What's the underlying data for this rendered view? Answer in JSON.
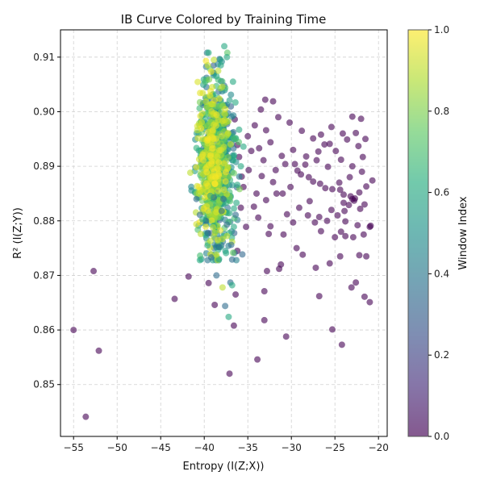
{
  "chart_data": {
    "type": "scatter",
    "title": "IB Curve Colored by Training Time",
    "xlabel": "Entropy (I(Z;X))",
    "ylabel": "R² (I(Z;Y))",
    "xlim": [
      -56.5,
      -19.0
    ],
    "ylim": [
      0.8405,
      0.915
    ],
    "x_ticks": [
      -55,
      -50,
      -45,
      -40,
      -35,
      -30,
      -25,
      -20
    ],
    "y_ticks": [
      0.85,
      0.86,
      0.87,
      0.88,
      0.89,
      0.9,
      0.91
    ],
    "grid": true,
    "colormap": "viridis",
    "colorbar": {
      "label": "Window Index",
      "range": [
        0.0,
        1.0
      ],
      "ticks": [
        0.0,
        0.2,
        0.4,
        0.6,
        0.8,
        1.0
      ]
    },
    "series": [
      {
        "color_value": 0.0,
        "points": [
          [
            -55.0,
            0.86
          ],
          [
            -53.6,
            0.8441
          ],
          [
            -52.7,
            0.8708
          ],
          [
            -52.1,
            0.8562
          ],
          [
            -43.4,
            0.8657
          ],
          [
            -41.8,
            0.8698
          ],
          [
            -39.5,
            0.8686
          ],
          [
            -38.8,
            0.8646
          ],
          [
            -37.1,
            0.852
          ],
          [
            -36.6,
            0.8608
          ],
          [
            -36.4,
            0.8665
          ],
          [
            -33.9,
            0.8546
          ],
          [
            -33.1,
            0.8618
          ],
          [
            -33.1,
            0.8671
          ],
          [
            -30.6,
            0.8588
          ],
          [
            -26.8,
            0.8662
          ],
          [
            -25.3,
            0.8601
          ],
          [
            -24.2,
            0.8573
          ],
          [
            -21.6,
            0.8661
          ],
          [
            -21.0,
            0.8651
          ],
          [
            -22.6,
            0.8687
          ],
          [
            -23.1,
            0.8678
          ],
          [
            -22.2,
            0.8737
          ],
          [
            -21.4,
            0.8735
          ],
          [
            -24.4,
            0.8735
          ],
          [
            -25.6,
            0.8722
          ],
          [
            -27.2,
            0.8714
          ],
          [
            -28.7,
            0.8738
          ],
          [
            -31.4,
            0.8712
          ],
          [
            -32.8,
            0.8708
          ],
          [
            -31.2,
            0.872
          ],
          [
            -29.4,
            0.875
          ],
          [
            -36.2,
            0.8745
          ],
          [
            -35.2,
            0.8789
          ],
          [
            -33.8,
            0.8806
          ],
          [
            -32.4,
            0.879
          ],
          [
            -30.9,
            0.8775
          ],
          [
            -29.8,
            0.8797
          ],
          [
            -28.1,
            0.881
          ],
          [
            -26.6,
            0.8781
          ],
          [
            -25.0,
            0.877
          ],
          [
            -23.8,
            0.8772
          ],
          [
            -22.4,
            0.8792
          ],
          [
            -21.0,
            0.8789
          ],
          [
            -21.4,
            0.8863
          ],
          [
            -22.2,
            0.8852
          ],
          [
            -23.0,
            0.884
          ],
          [
            -24.0,
            0.8833
          ],
          [
            -25.4,
            0.882
          ],
          [
            -26.8,
            0.8807
          ],
          [
            -27.9,
            0.8836
          ],
          [
            -29.1,
            0.8824
          ],
          [
            -30.5,
            0.8812
          ],
          [
            -31.7,
            0.885
          ],
          [
            -32.9,
            0.8838
          ],
          [
            -34.3,
            0.8826
          ],
          [
            -35.5,
            0.8862
          ],
          [
            -34.9,
            0.8893
          ],
          [
            -33.4,
            0.8882
          ],
          [
            -32.1,
            0.8871
          ],
          [
            -30.7,
            0.8904
          ],
          [
            -29.3,
            0.8892
          ],
          [
            -28.0,
            0.888
          ],
          [
            -26.7,
            0.8868
          ],
          [
            -25.3,
            0.8858
          ],
          [
            -24.0,
            0.8848
          ],
          [
            -22.8,
            0.8837
          ],
          [
            -21.6,
            0.883
          ],
          [
            -20.7,
            0.8874
          ],
          [
            -21.9,
            0.889
          ],
          [
            -23.3,
            0.888
          ],
          [
            -24.5,
            0.887
          ],
          [
            -25.8,
            0.8899
          ],
          [
            -27.1,
            0.8911
          ],
          [
            -28.4,
            0.8903
          ],
          [
            -29.8,
            0.893
          ],
          [
            -31.1,
            0.8919
          ],
          [
            -32.4,
            0.8944
          ],
          [
            -33.7,
            0.8933
          ],
          [
            -35.0,
            0.8955
          ],
          [
            -34.2,
            0.8975
          ],
          [
            -32.9,
            0.8966
          ],
          [
            -31.5,
            0.899
          ],
          [
            -30.2,
            0.898
          ],
          [
            -28.8,
            0.8965
          ],
          [
            -27.5,
            0.8951
          ],
          [
            -26.2,
            0.894
          ],
          [
            -24.9,
            0.8928
          ],
          [
            -23.6,
            0.8949
          ],
          [
            -22.3,
            0.8937
          ],
          [
            -24.1,
            0.896
          ],
          [
            -25.4,
            0.8972
          ],
          [
            -26.6,
            0.8958
          ],
          [
            -33.5,
            0.9004
          ],
          [
            -32.1,
            0.9019
          ],
          [
            -33.0,
            0.9022
          ],
          [
            -36.0,
            0.8917
          ],
          [
            -35.7,
            0.8881
          ],
          [
            -22.0,
            0.8987
          ],
          [
            -23.0,
            0.8991
          ],
          [
            -22.7,
            0.8841
          ],
          [
            -23.4,
            0.8829
          ],
          [
            -23.9,
            0.8818
          ],
          [
            -24.7,
            0.881
          ],
          [
            -25.9,
            0.88
          ],
          [
            -27.3,
            0.8797
          ],
          [
            -24.3,
            0.878
          ],
          [
            -22.9,
            0.877
          ],
          [
            -21.7,
            0.8775
          ],
          [
            -20.9,
            0.8791
          ],
          [
            -23.2,
            0.8845
          ],
          [
            -24.4,
            0.8857
          ],
          [
            -22.1,
            0.8822
          ],
          [
            -23.8,
            0.8799
          ],
          [
            -26.1,
            0.886
          ],
          [
            -27.5,
            0.8872
          ],
          [
            -28.9,
            0.8885
          ],
          [
            -30.1,
            0.8862
          ],
          [
            -31.8,
            0.8893
          ],
          [
            -33.2,
            0.8911
          ],
          [
            -34.6,
            0.8928
          ],
          [
            -36.2,
            0.8939
          ],
          [
            -36.5,
            0.8986
          ],
          [
            -35.8,
            0.8824
          ],
          [
            -34.0,
            0.885
          ],
          [
            -32.6,
            0.8776
          ],
          [
            -31.0,
            0.885
          ],
          [
            -29.6,
            0.8904
          ],
          [
            -28.3,
            0.8918
          ],
          [
            -26.9,
            0.8927
          ],
          [
            -25.6,
            0.8941
          ],
          [
            -24.3,
            0.8912
          ],
          [
            -23.0,
            0.89
          ],
          [
            -21.8,
            0.8917
          ],
          [
            -21.5,
            0.895
          ],
          [
            -22.6,
            0.8961
          ]
        ]
      },
      {
        "color_value": 0.35,
        "points": [
          [
            -37.6,
            0.8644
          ],
          [
            -38.6,
            0.87
          ],
          [
            -39.2,
            0.8733
          ],
          [
            -38.3,
            0.8752
          ],
          [
            -36.9,
            0.8756
          ],
          [
            -37.4,
            0.8793
          ],
          [
            -39.8,
            0.88
          ],
          [
            -40.5,
            0.8811
          ],
          [
            -38.0,
            0.8818
          ],
          [
            -36.4,
            0.8811
          ],
          [
            -40.9,
            0.884
          ],
          [
            -37.0,
            0.8687
          ],
          [
            -36.8,
            0.8729
          ],
          [
            -39.6,
            0.8778
          ],
          [
            -38.9,
            0.8843
          ],
          [
            -37.8,
            0.884
          ]
        ]
      },
      {
        "color_value": 0.6,
        "points": [
          [
            -37.2,
            0.8624
          ],
          [
            -36.8,
            0.8682
          ],
          [
            -38.3,
            0.873
          ],
          [
            -37.5,
            0.8741
          ],
          [
            -39.6,
            0.8755
          ],
          [
            -36.6,
            0.8789
          ],
          [
            -38.9,
            0.8791
          ],
          [
            -37.1,
            0.8814
          ],
          [
            -40.2,
            0.8803
          ],
          [
            -36.3,
            0.8833
          ],
          [
            -37.7,
            0.912
          ],
          [
            -37.4,
            0.91
          ],
          [
            -38.1,
            0.9085
          ],
          [
            -36.7,
            0.9055
          ],
          [
            -38.6,
            0.9065
          ],
          [
            -35.8,
            0.89
          ],
          [
            -35.5,
            0.8936
          ],
          [
            -36.2,
            0.8866
          ],
          [
            -39.3,
            0.8846
          ],
          [
            -36.0,
            0.8967
          ]
        ]
      },
      {
        "color_value": 0.9,
        "points": [
          [
            -37.9,
            0.8678
          ],
          [
            -38.6,
            0.8738
          ],
          [
            -39.3,
            0.8763
          ],
          [
            -40.4,
            0.8776
          ],
          [
            -37.4,
            0.8772
          ],
          [
            -39.0,
            0.8788
          ],
          [
            -40.6,
            0.885
          ],
          [
            -40.8,
            0.8966
          ],
          [
            -39.6,
            0.9085
          ],
          [
            -38.9,
            0.9095
          ],
          [
            -38.4,
            0.9075
          ]
        ]
      }
    ],
    "cloud": {
      "x_range": [
        -41.6,
        -35.4
      ],
      "y_range": [
        0.8728,
        0.9108
      ],
      "x_center": -38.6,
      "y_center": 0.8905,
      "color_range": [
        0.3,
        1.0
      ],
      "approx_points": 900
    }
  }
}
